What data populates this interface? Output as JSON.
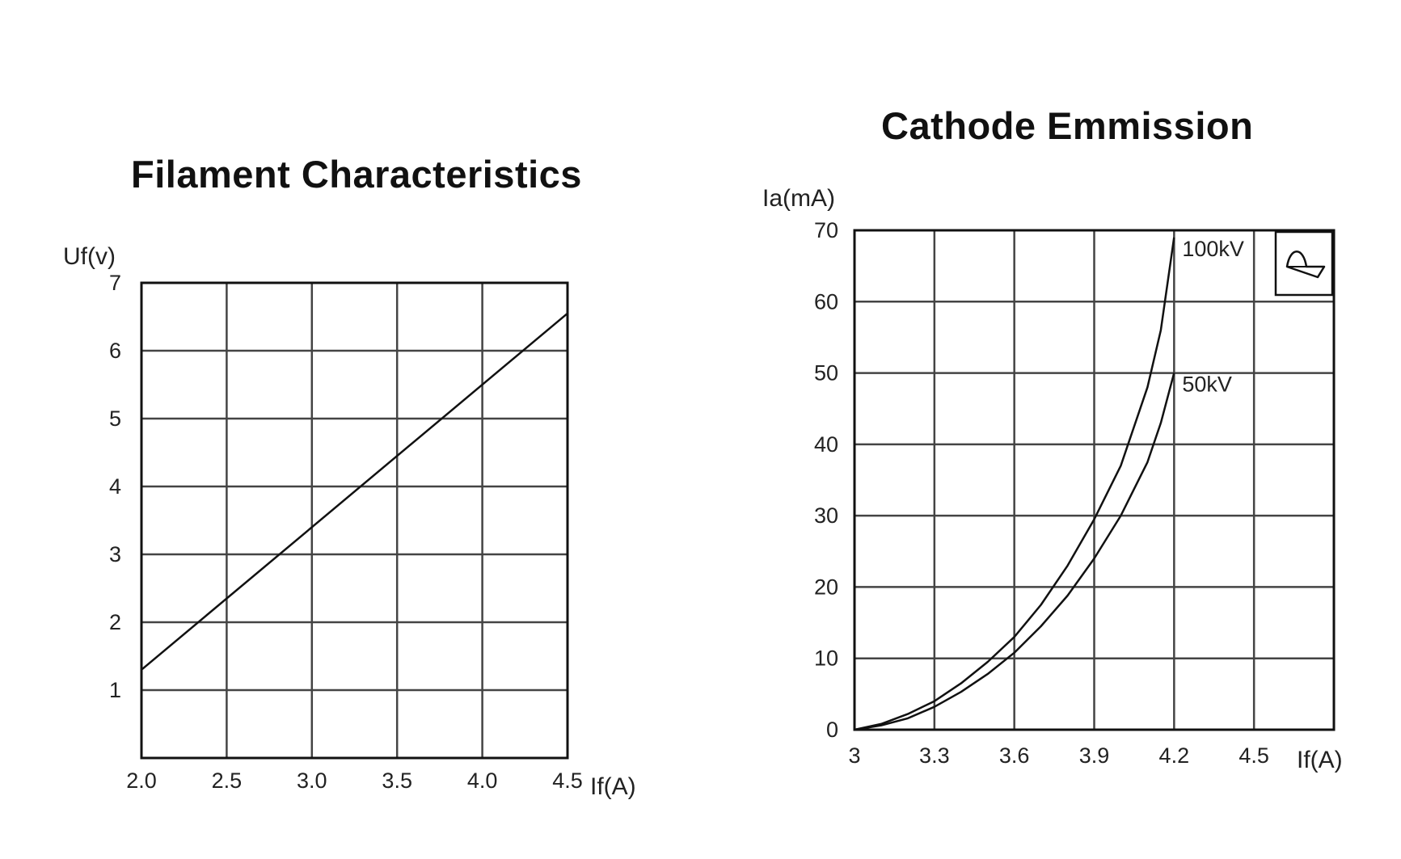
{
  "chart_data": [
    {
      "type": "line",
      "title": "Filament Characteristics",
      "xlabel": "If(A)",
      "ylabel": "Uf(v)",
      "xlim": [
        2.0,
        4.5
      ],
      "ylim": [
        0,
        7
      ],
      "x_ticks": [
        "2.0",
        "2.5",
        "3.0",
        "3.5",
        "4.0",
        "4.5"
      ],
      "y_ticks": [
        "1",
        "2",
        "3",
        "4",
        "5",
        "6",
        "7"
      ],
      "grid": true,
      "series": [
        {
          "x": [
            2.0,
            4.5
          ],
          "y": [
            1.3,
            6.55
          ]
        }
      ]
    },
    {
      "type": "line",
      "title": "Cathode Emmission",
      "xlabel": "If(A)",
      "ylabel": "Ia(mA)",
      "xlim": [
        3,
        4.8
      ],
      "ylim": [
        0,
        70
      ],
      "x_ticks": [
        "3",
        "3.3",
        "3.6",
        "3.9",
        "4.2",
        "4.5"
      ],
      "y_ticks": [
        "0",
        "10",
        "20",
        "30",
        "40",
        "50",
        "60",
        "70"
      ],
      "grid": true,
      "icon": "ac-waveform-icon",
      "series": [
        {
          "name": "100kV",
          "x": [
            3.0,
            3.1,
            3.2,
            3.3,
            3.4,
            3.5,
            3.6,
            3.7,
            3.8,
            3.9,
            4.0,
            4.1,
            4.15,
            4.2
          ],
          "y": [
            0,
            0.8,
            2.2,
            4.0,
            6.5,
            9.5,
            13,
            17.5,
            23,
            29.5,
            37,
            48,
            56,
            69
          ]
        },
        {
          "name": "50kV",
          "x": [
            3.0,
            3.1,
            3.2,
            3.3,
            3.4,
            3.5,
            3.6,
            3.7,
            3.8,
            3.9,
            4.0,
            4.1,
            4.15,
            4.2
          ],
          "y": [
            0,
            0.6,
            1.6,
            3.2,
            5.3,
            7.8,
            10.8,
            14.5,
            18.8,
            24,
            30,
            37.5,
            43,
            50
          ]
        }
      ]
    }
  ]
}
